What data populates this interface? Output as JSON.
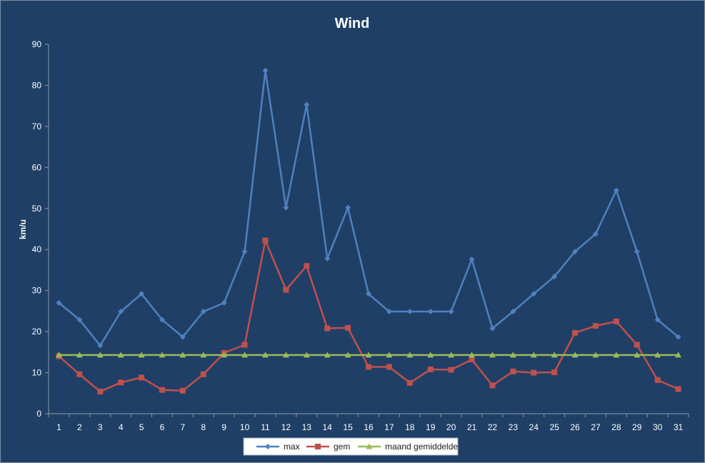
{
  "chart_data": {
    "type": "line",
    "title": "Wind",
    "xlabel": "",
    "ylabel": "km/u",
    "ylim": [
      0,
      90
    ],
    "yticks": [
      "0",
      "10",
      "20",
      "30",
      "40",
      "50",
      "60",
      "70",
      "80",
      "90"
    ],
    "categories": [
      "1",
      "2",
      "3",
      "4",
      "5",
      "6",
      "7",
      "8",
      "9",
      "10",
      "11",
      "12",
      "13",
      "14",
      "15",
      "16",
      "17",
      "18",
      "19",
      "20",
      "21",
      "22",
      "23",
      "24",
      "25",
      "26",
      "27",
      "28",
      "29",
      "30",
      "31"
    ],
    "grid": false,
    "legend_position": "bottom",
    "series": [
      {
        "name": "max",
        "color": "#4f81bd",
        "marker": "diamond",
        "values": [
          27,
          22.9,
          16.6,
          24.9,
          29.2,
          22.9,
          18.7,
          24.9,
          27,
          39.5,
          83.6,
          50.2,
          75.3,
          37.8,
          50.2,
          29.2,
          24.9,
          24.9,
          24.9,
          24.9,
          37.6,
          20.8,
          24.9,
          29.2,
          33.4,
          39.5,
          43.8,
          54.4,
          39.5,
          22.9,
          18.7
        ]
      },
      {
        "name": "gem",
        "color": "#c0504d",
        "marker": "square",
        "values": [
          14,
          9.6,
          5.4,
          7.6,
          8.8,
          5.8,
          5.6,
          9.6,
          14.8,
          16.8,
          42.2,
          30.2,
          36,
          20.8,
          20.9,
          11.4,
          11.4,
          7.5,
          10.8,
          10.7,
          13.2,
          6.9,
          10.3,
          10,
          10.1,
          19.7,
          21.4,
          22.5,
          16.8,
          8.2,
          6
        ]
      },
      {
        "name": "maand gemiddelde",
        "color": "#9bbb59",
        "marker": "triangle",
        "values": [
          14.3,
          14.3,
          14.3,
          14.3,
          14.3,
          14.3,
          14.3,
          14.3,
          14.3,
          14.3,
          14.3,
          14.3,
          14.3,
          14.3,
          14.3,
          14.3,
          14.3,
          14.3,
          14.3,
          14.3,
          14.3,
          14.3,
          14.3,
          14.3,
          14.3,
          14.3,
          14.3,
          14.3,
          14.3,
          14.3,
          14.3
        ]
      }
    ]
  }
}
